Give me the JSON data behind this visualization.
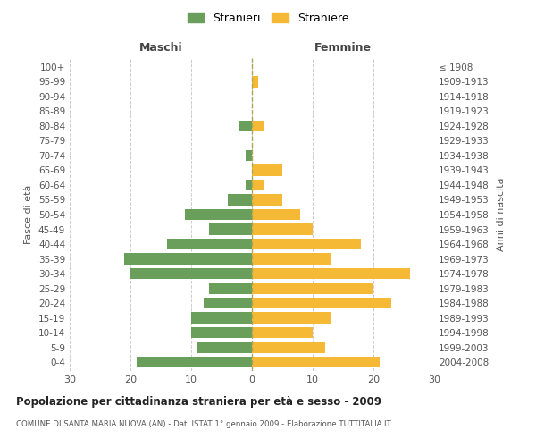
{
  "age_groups": [
    "0-4",
    "5-9",
    "10-14",
    "15-19",
    "20-24",
    "25-29",
    "30-34",
    "35-39",
    "40-44",
    "45-49",
    "50-54",
    "55-59",
    "60-64",
    "65-69",
    "70-74",
    "75-79",
    "80-84",
    "85-89",
    "90-94",
    "95-99",
    "100+"
  ],
  "birth_years": [
    "2004-2008",
    "1999-2003",
    "1994-1998",
    "1989-1993",
    "1984-1988",
    "1979-1983",
    "1974-1978",
    "1969-1973",
    "1964-1968",
    "1959-1963",
    "1954-1958",
    "1949-1953",
    "1944-1948",
    "1939-1943",
    "1934-1938",
    "1929-1933",
    "1924-1928",
    "1919-1923",
    "1914-1918",
    "1909-1913",
    "≤ 1908"
  ],
  "males": [
    19,
    9,
    10,
    10,
    8,
    7,
    20,
    21,
    14,
    7,
    11,
    4,
    1,
    0,
    1,
    0,
    2,
    0,
    0,
    0,
    0
  ],
  "females": [
    21,
    12,
    10,
    13,
    23,
    20,
    26,
    13,
    18,
    10,
    8,
    5,
    2,
    5,
    0,
    0,
    2,
    0,
    0,
    1,
    0
  ],
  "male_color": "#6a9e5b",
  "female_color": "#f5b935",
  "title": "Popolazione per cittadinanza straniera per età e sesso - 2009",
  "subtitle": "COMUNE DI SANTA MARIA NUOVA (AN) - Dati ISTAT 1° gennaio 2009 - Elaborazione TUTTITALIA.IT",
  "xlabel_left": "Maschi",
  "xlabel_right": "Femmine",
  "ylabel_left": "Fasce di età",
  "ylabel_right": "Anni di nascita",
  "legend_male": "Stranieri",
  "legend_female": "Straniere",
  "xlim": 30,
  "background_color": "#ffffff",
  "grid_color": "#cccccc"
}
